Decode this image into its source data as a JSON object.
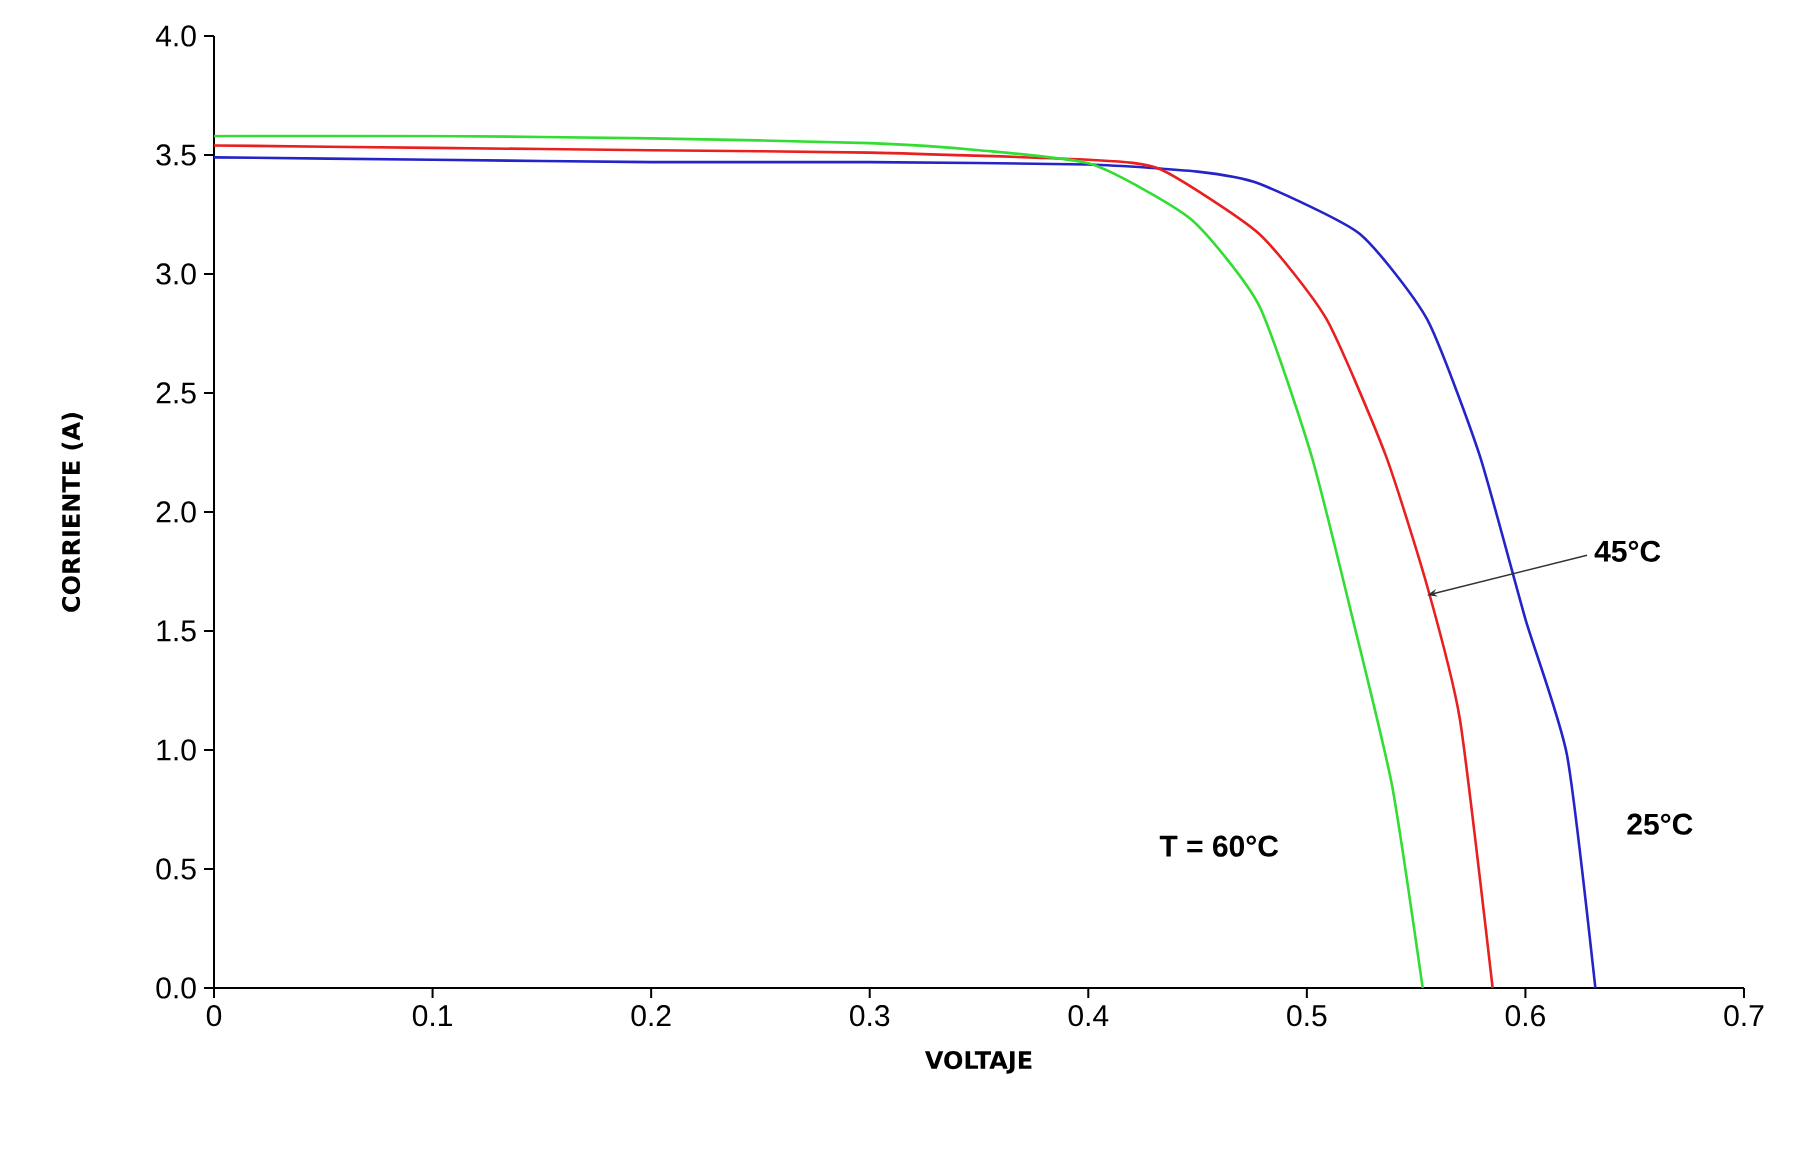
{
  "chart_data": {
    "type": "line",
    "xlabel": "VOLTAJE",
    "ylabel": "CORRIENTE (A)",
    "xlim": [
      0,
      0.7
    ],
    "ylim": [
      0,
      4.0
    ],
    "xticks": [
      0,
      0.1,
      0.2,
      0.3,
      0.4,
      0.5,
      0.6,
      0.7
    ],
    "yticks": [
      {
        "value": 0,
        "label": "0.0"
      },
      0.5,
      {
        "value": 1,
        "label": "1.0"
      },
      1.5,
      {
        "value": 2,
        "label": "2.0"
      },
      2.5,
      {
        "value": 3,
        "label": "3.0"
      },
      3.5,
      {
        "value": 4,
        "label": "4.0"
      }
    ],
    "grid": false,
    "marker": "none",
    "line_style": "solid",
    "series": [
      {
        "color": "#2424c8",
        "x": [
          0,
          0.1,
          0.2,
          0.3,
          0.4,
          0.45,
          0.478,
          0.524,
          0.555,
          0.579,
          0.6,
          0.619,
          0.632
        ],
        "values": [
          3.49,
          3.48,
          3.47,
          3.47,
          3.46,
          3.43,
          3.38,
          3.17,
          2.81,
          2.24,
          1.55,
          0.98,
          0
        ]
      },
      {
        "color": "#e82020",
        "x": [
          0,
          0.1,
          0.2,
          0.3,
          0.4,
          0.433,
          0.478,
          0.509,
          0.536,
          0.555,
          0.57,
          0.585
        ],
        "values": [
          3.54,
          3.53,
          3.52,
          3.51,
          3.48,
          3.44,
          3.17,
          2.81,
          2.24,
          1.69,
          1.13,
          0
        ]
      },
      {
        "color": "#33dd33",
        "x": [
          0,
          0.1,
          0.2,
          0.3,
          0.35,
          0.402,
          0.447,
          0.478,
          0.502,
          0.521,
          0.539,
          0.553
        ],
        "values": [
          3.58,
          3.58,
          3.57,
          3.55,
          3.52,
          3.46,
          3.23,
          2.87,
          2.24,
          1.55,
          0.85,
          0
        ]
      }
    ],
    "annotations": [
      "T = 60°C",
      {
        "text": "45°C",
        "x": 0.555,
        "y": 1.65
      },
      "25°C"
    ]
  }
}
